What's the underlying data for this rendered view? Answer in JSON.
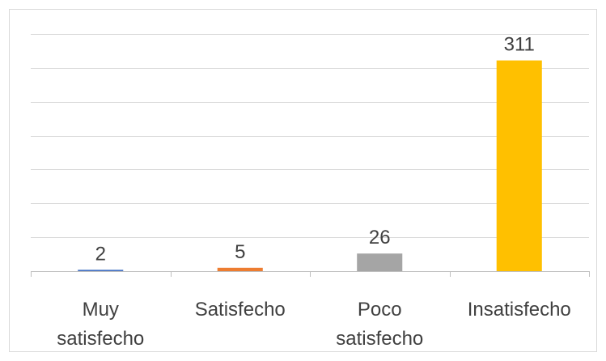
{
  "chart_data": {
    "type": "bar",
    "categories": [
      [
        "Muy",
        "satisfecho"
      ],
      [
        "Satisfecho"
      ],
      [
        "Poco",
        "satisfecho"
      ],
      [
        "Insatisfecho"
      ]
    ],
    "values": [
      2,
      5,
      26,
      311
    ],
    "data_labels": [
      "2",
      "5",
      "26",
      "311"
    ],
    "colors": [
      "#4472C4",
      "#ED7D31",
      "#A5A5A5",
      "#FFC000"
    ],
    "title": "",
    "xlabel": "",
    "ylabel": "",
    "ylim": [
      0,
      350
    ],
    "grid": true,
    "legend": "none"
  }
}
